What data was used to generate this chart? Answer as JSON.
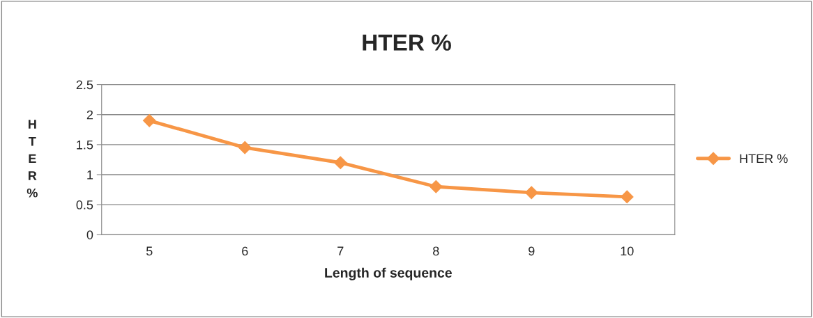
{
  "chart_data": {
    "type": "line",
    "title": "HTER %",
    "xlabel": "Length of sequence",
    "ylabel": "HTER %",
    "categories": [
      "5",
      "6",
      "7",
      "8",
      "9",
      "10"
    ],
    "series": [
      {
        "name": "HTER %",
        "color": "#f79646",
        "values": [
          1.9,
          1.45,
          1.2,
          0.8,
          0.7,
          0.63
        ]
      }
    ],
    "ylim": [
      0,
      2.5
    ],
    "yticks": [
      0,
      0.5,
      1,
      1.5,
      2,
      2.5
    ],
    "grid": "y",
    "legend": "right",
    "marker": "diamond",
    "line_style": "solid"
  }
}
